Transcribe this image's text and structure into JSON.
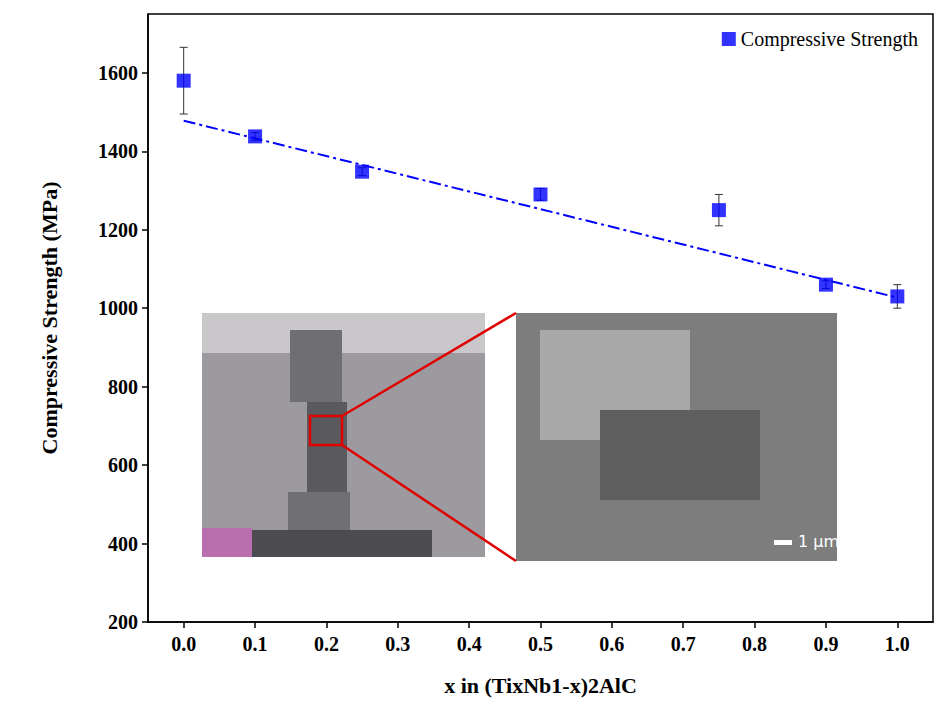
{
  "chart_data": {
    "type": "scatter",
    "x_label": "x in (TixNb1-x)2AlC",
    "y_label": "Compressive Strength (MPa)",
    "series": [
      {
        "name": "Compressive Strength",
        "type": "scatter",
        "marker": "square",
        "color": "#0000ff",
        "x": [
          0.0,
          0.1,
          0.25,
          0.5,
          0.75,
          0.9,
          1.0
        ],
        "values": [
          1580,
          1438,
          1348,
          1290,
          1250,
          1060,
          1030
        ],
        "errors": [
          85,
          10,
          10,
          15,
          40,
          10,
          30
        ]
      },
      {
        "type": "line",
        "line_style": "dashdot",
        "color": "#0000ff",
        "x": [
          0.0,
          1.0
        ],
        "values": [
          1478,
          1027
        ]
      }
    ],
    "xlim": [
      -0.05,
      1.05
    ],
    "xticks": [
      {
        "value": 0,
        "label": "0.0"
      },
      0.1,
      0.2,
      0.3,
      0.4,
      0.5,
      0.6,
      0.7,
      0.8,
      0.9,
      {
        "value": 1,
        "label": "1.0"
      }
    ],
    "ylim": [
      200,
      1750
    ],
    "yticks": [
      200,
      400,
      600,
      800,
      1000,
      1200,
      1400,
      1600
    ],
    "grid": false,
    "legend": "top-right",
    "annotations": [
      {
        "text": "1 μm"
      }
    ]
  }
}
